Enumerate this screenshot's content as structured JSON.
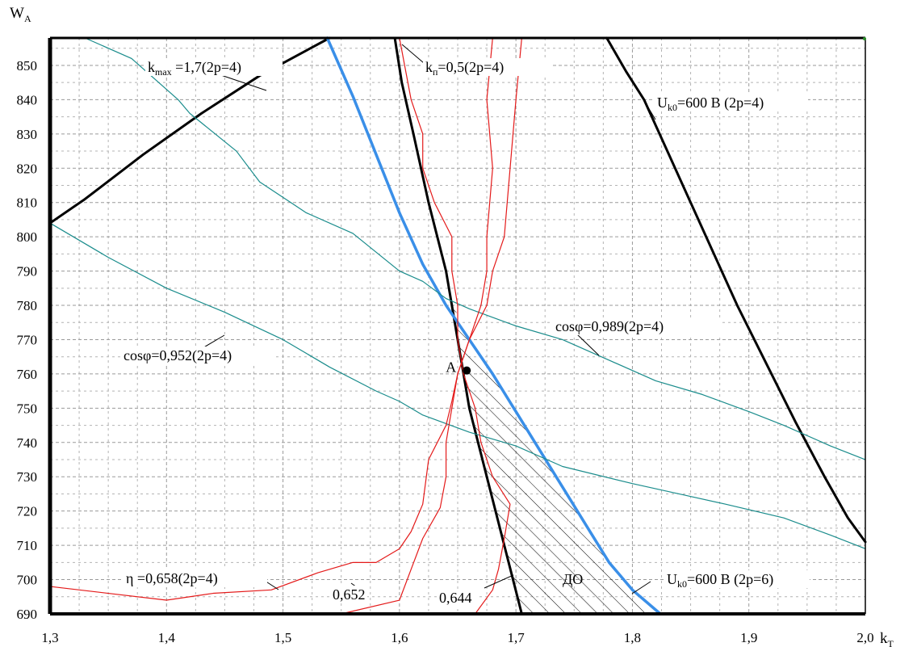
{
  "chart_data": {
    "type": "line",
    "x_axis": {
      "label": "k",
      "label_subscript": "T",
      "range": [
        1.3,
        2.0
      ],
      "ticks": [
        1.3,
        1.4,
        1.5,
        1.6,
        1.7,
        1.8,
        1.9,
        2.0
      ],
      "tick_labels": [
        "1,3",
        "1,4",
        "1,5",
        "1,6",
        "1,7",
        "1,8",
        "1,9",
        "2,0"
      ],
      "minor_step": 0.025
    },
    "y_axis": {
      "label": "W",
      "label_subscript": "A",
      "range": [
        690,
        858
      ],
      "ticks": [
        690,
        700,
        710,
        720,
        730,
        740,
        750,
        760,
        770,
        780,
        790,
        800,
        810,
        820,
        830,
        840,
        850
      ],
      "tick_labels": [
        "690",
        "700",
        "710",
        "720",
        "730",
        "740",
        "750",
        "760",
        "770",
        "780",
        "790",
        "800",
        "810",
        "820",
        "830",
        "840",
        "850"
      ],
      "minor_step": 5
    },
    "grid": true,
    "series": [
      {
        "name": "k_max=1,7(2p=4)",
        "color": "#000000",
        "width": 3,
        "x": [
          1.3,
          1.33,
          1.38,
          1.43,
          1.48,
          1.54
        ],
        "y": [
          804,
          811,
          824,
          836,
          847,
          858
        ]
      },
      {
        "name": "k_п=0,5(2p=4)",
        "color": "#000000",
        "width": 3,
        "x": [
          1.596,
          1.602,
          1.612,
          1.625,
          1.64,
          1.645,
          1.65,
          1.66,
          1.675,
          1.69,
          1.705
        ],
        "y": [
          858,
          845,
          830,
          810,
          790,
          780,
          770,
          750,
          730,
          710,
          690
        ]
      },
      {
        "name": "U_k0=600 В (2p=4)",
        "color": "#000000",
        "width": 3,
        "x": [
          1.778,
          1.795,
          1.81,
          1.83,
          1.85,
          1.87,
          1.89,
          1.915,
          1.94,
          1.965,
          1.985,
          2.0
        ],
        "y": [
          858,
          848,
          840,
          825,
          810,
          795,
          780,
          763,
          746,
          730,
          718,
          711
        ]
      },
      {
        "name": "U_k0=600 В (2p=6)",
        "color": "#3a8fe8",
        "width": 3.5,
        "x": [
          1.538,
          1.56,
          1.58,
          1.6,
          1.62,
          1.64,
          1.66,
          1.68,
          1.7,
          1.72,
          1.74,
          1.76,
          1.78,
          1.8,
          1.824
        ],
        "y": [
          858,
          841,
          824,
          807,
          792,
          780,
          770,
          760,
          749,
          738,
          727,
          716,
          705,
          697,
          690
        ]
      },
      {
        "name": "cosφ=0,952(2p=4)",
        "color": "#1a8c8c",
        "width": 1.2,
        "x": [
          1.3,
          1.35,
          1.4,
          1.45,
          1.5,
          1.54,
          1.58,
          1.6,
          1.62,
          1.66,
          1.7,
          1.74,
          1.8,
          1.84,
          1.88,
          1.93,
          1.97,
          2.0
        ],
        "y": [
          804,
          794,
          785,
          778,
          770,
          762,
          755,
          752,
          748,
          743,
          739,
          733,
          728,
          725,
          722,
          718,
          713,
          709
        ]
      },
      {
        "name": "cosφ=0,989(2p=4)",
        "color": "#1a8c8c",
        "width": 1.2,
        "x": [
          1.33,
          1.37,
          1.41,
          1.42,
          1.46,
          1.48,
          1.52,
          1.56,
          1.6,
          1.62,
          1.64,
          1.66,
          1.7,
          1.74,
          1.78,
          1.82,
          1.86,
          1.9,
          1.93,
          1.97,
          2.0
        ],
        "y": [
          858,
          852,
          840,
          836,
          825,
          816,
          807,
          801,
          790,
          787,
          782,
          779,
          774,
          770,
          764,
          758,
          754,
          749,
          745,
          739,
          735
        ]
      },
      {
        "name": "η=0,658(2p=4)",
        "color": "#e41a1a",
        "width": 1.2,
        "x": [
          1.3,
          1.35,
          1.4,
          1.44,
          1.49,
          1.53,
          1.56,
          1.58,
          1.6,
          1.61,
          1.62,
          1.625,
          1.64,
          1.645,
          1.65,
          1.66,
          1.675,
          1.68,
          1.69,
          1.695,
          1.7,
          1.705
        ],
        "y": [
          698,
          696,
          694,
          696,
          697,
          702,
          705,
          705,
          709,
          714,
          722,
          735,
          745,
          752,
          760,
          770,
          780,
          790,
          800,
          820,
          840,
          858
        ]
      },
      {
        "name": "0,652",
        "color": "#e41a1a",
        "width": 1.2,
        "x": [
          1.55,
          1.6,
          1.62,
          1.635,
          1.64,
          1.64,
          1.645,
          1.65,
          1.66,
          1.67,
          1.675,
          1.675,
          1.68,
          1.675,
          1.68
        ],
        "y": [
          690,
          694,
          712,
          721,
          730,
          740,
          750,
          760,
          770,
          780,
          790,
          800,
          820,
          840,
          858
        ]
      },
      {
        "name": "0,644",
        "color": "#e41a1a",
        "width": 1.2,
        "x": [
          1.665,
          1.68,
          1.685,
          1.69,
          1.695,
          1.68,
          1.67,
          1.665,
          1.655,
          1.65,
          1.65,
          1.645,
          1.645,
          1.63,
          1.62,
          1.62,
          1.61,
          1.6
        ],
        "y": [
          690,
          697,
          703,
          712,
          722,
          730,
          740,
          750,
          760,
          770,
          780,
          790,
          800,
          810,
          820,
          830,
          840,
          858
        ]
      }
    ],
    "hatched_region": {
      "label": "ДО",
      "polygon_x": [
        1.646,
        1.66,
        1.68,
        1.7,
        1.72,
        1.74,
        1.76,
        1.78,
        1.8,
        1.824,
        1.705,
        1.69,
        1.675,
        1.66,
        1.65
      ],
      "polygon_y": [
        780,
        770,
        760,
        749,
        738,
        727,
        716,
        705,
        697,
        690,
        690,
        710,
        730,
        750,
        770
      ]
    },
    "point": {
      "label": "A",
      "x": 1.655,
      "y": 761
    },
    "annotations": [
      {
        "id": "kmax",
        "prefix": "k",
        "sub": "max",
        "text": " =1,7(2p=4)"
      },
      {
        "id": "kp",
        "prefix": "k",
        "sub": "п",
        "text": "=0,5(2p=4)"
      },
      {
        "id": "uk4",
        "prefix": "U",
        "sub": "k0",
        "text": "=600 В (2p=4)"
      },
      {
        "id": "uk6",
        "prefix": "U",
        "sub": "k0",
        "text": "=600 В (2p=6)"
      },
      {
        "id": "cos952",
        "text": "cosφ=0,952(2p=4)"
      },
      {
        "id": "cos989",
        "text": "cosφ=0,989(2p=4)"
      },
      {
        "id": "eta",
        "text": "η =0,658(2p=4)"
      },
      {
        "id": "e652",
        "text": "0,652"
      },
      {
        "id": "e644",
        "text": "0,644"
      }
    ]
  }
}
